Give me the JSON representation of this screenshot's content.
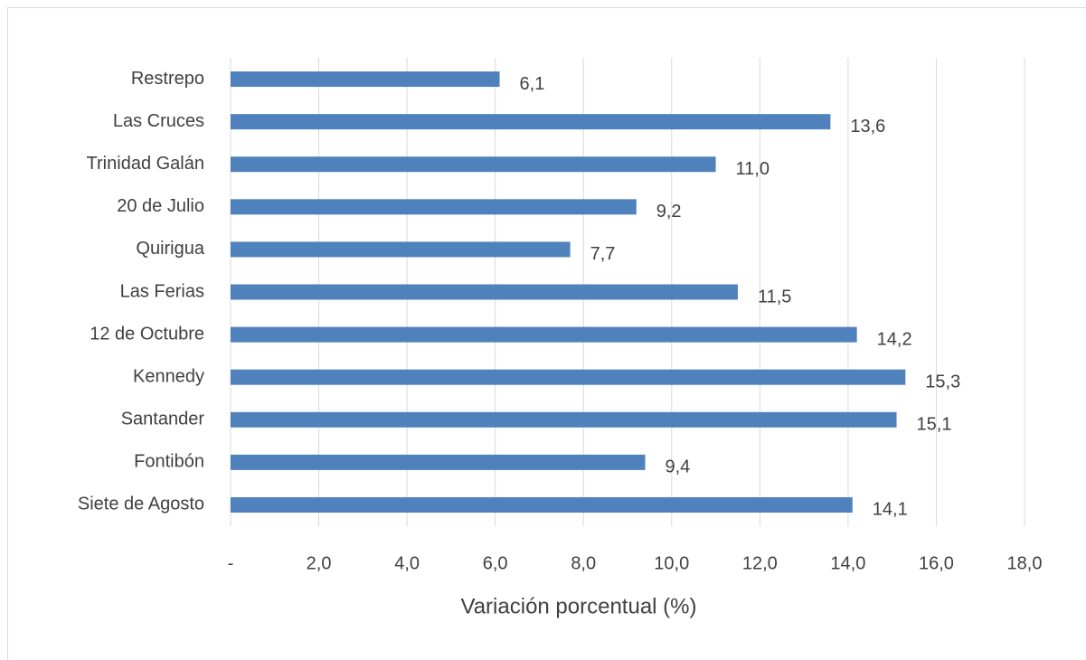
{
  "chart_data": {
    "type": "bar",
    "orientation": "horizontal",
    "x_label": "Variación porcentual (%)",
    "categories": [
      "Restrepo",
      "Las Cruces",
      "Trinidad Galán",
      "20 de Julio",
      "Quirigua",
      "Las Ferias",
      "12 de Octubre",
      "Kennedy",
      "Santander",
      "Fontibón",
      "Siete de Agosto"
    ],
    "values": [
      6.1,
      13.6,
      11.0,
      9.2,
      7.7,
      11.5,
      14.2,
      15.3,
      15.1,
      9.4,
      14.1
    ],
    "value_labels": [
      "6,1",
      "13,6",
      "11,0",
      "9,2",
      "7,7",
      "11,5",
      "14,2",
      "15,3",
      "15,1",
      "9,4",
      "14,1"
    ],
    "color": "#4f81bd",
    "xlim": [
      0,
      18
    ],
    "xticks": [
      {
        "value": 0,
        "label": "-"
      },
      {
        "value": 2,
        "label": "2,0"
      },
      {
        "value": 4,
        "label": "4,0"
      },
      {
        "value": 6,
        "label": "6,0"
      },
      {
        "value": 8,
        "label": "8,0"
      },
      {
        "value": 10,
        "label": "10,0"
      },
      {
        "value": 12,
        "label": "12,0"
      },
      {
        "value": 14,
        "label": "14,0"
      },
      {
        "value": 16,
        "label": "16,0"
      },
      {
        "value": 18,
        "label": "18,0"
      }
    ],
    "grid": true
  }
}
